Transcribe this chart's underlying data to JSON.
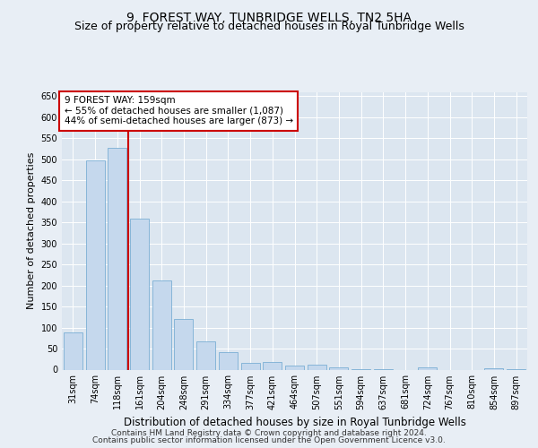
{
  "title": "9, FOREST WAY, TUNBRIDGE WELLS, TN2 5HA",
  "subtitle": "Size of property relative to detached houses in Royal Tunbridge Wells",
  "xlabel": "Distribution of detached houses by size in Royal Tunbridge Wells",
  "ylabel": "Number of detached properties",
  "footnote1": "Contains HM Land Registry data © Crown copyright and database right 2024.",
  "footnote2": "Contains public sector information licensed under the Open Government Licence v3.0.",
  "categories": [
    "31sqm",
    "74sqm",
    "118sqm",
    "161sqm",
    "204sqm",
    "248sqm",
    "291sqm",
    "334sqm",
    "377sqm",
    "421sqm",
    "464sqm",
    "507sqm",
    "551sqm",
    "594sqm",
    "637sqm",
    "681sqm",
    "724sqm",
    "767sqm",
    "810sqm",
    "854sqm",
    "897sqm"
  ],
  "values": [
    88,
    498,
    528,
    358,
    212,
    120,
    68,
    42,
    16,
    19,
    10,
    12,
    5,
    1,
    1,
    0,
    5,
    0,
    0,
    4,
    1
  ],
  "bar_color": "#c5d8ed",
  "bar_edge_color": "#7bafd4",
  "highlight_bar_index": 2,
  "highlight_line_color": "#cc0000",
  "annotation_text_line1": "9 FOREST WAY: 159sqm",
  "annotation_text_line2": "← 55% of detached houses are smaller (1,087)",
  "annotation_text_line3": "44% of semi-detached houses are larger (873) →",
  "annotation_box_facecolor": "#ffffff",
  "annotation_box_edgecolor": "#cc0000",
  "ylim": [
    0,
    660
  ],
  "yticks": [
    0,
    50,
    100,
    150,
    200,
    250,
    300,
    350,
    400,
    450,
    500,
    550,
    600,
    650
  ],
  "background_color": "#e8eef5",
  "plot_background_color": "#dce6f0",
  "grid_color": "#ffffff",
  "title_fontsize": 10,
  "subtitle_fontsize": 9,
  "tick_fontsize": 7,
  "ylabel_fontsize": 8,
  "xlabel_fontsize": 8.5,
  "annotation_fontsize": 7.5,
  "footnote_fontsize": 6.5
}
